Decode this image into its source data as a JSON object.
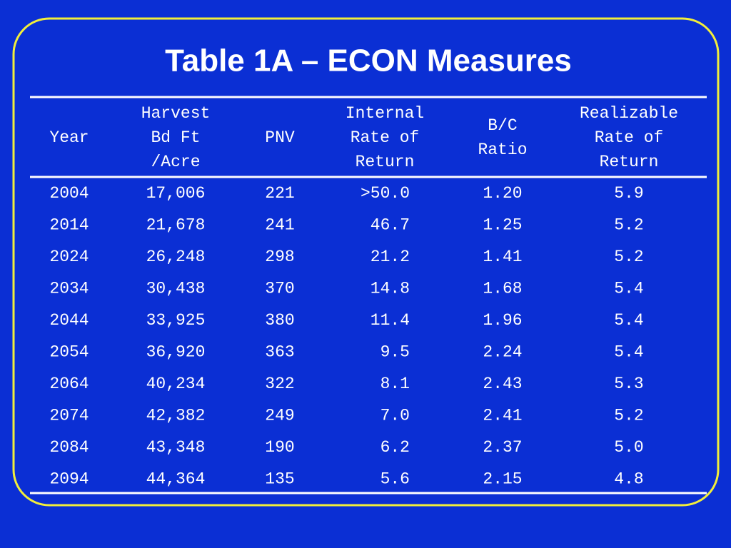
{
  "title": "Table 1A – ECON Measures",
  "table": {
    "header": [
      [
        "Year"
      ],
      [
        "Harvest",
        "Bd Ft",
        "/Acre"
      ],
      [
        "PNV"
      ],
      [
        "Internal",
        "Rate of",
        "Return"
      ],
      [
        "B/C",
        "Ratio"
      ],
      [
        "Realizable",
        "Rate of",
        "Return"
      ]
    ],
    "rows": [
      [
        "2004",
        "17,006",
        "221",
        ">50.0",
        "1.20",
        "5.9"
      ],
      [
        "2014",
        "21,678",
        "241",
        "46.7",
        "1.25",
        "5.2"
      ],
      [
        "2024",
        "26,248",
        "298",
        "21.2",
        "1.41",
        "5.2"
      ],
      [
        "2034",
        "30,438",
        "370",
        "14.8",
        "1.68",
        "5.4"
      ],
      [
        "2044",
        "33,925",
        "380",
        "11.4",
        "1.96",
        "5.4"
      ],
      [
        "2054",
        "36,920",
        "363",
        "9.5",
        "2.24",
        "5.4"
      ],
      [
        "2064",
        "40,234",
        "322",
        "8.1",
        "2.43",
        "5.3"
      ],
      [
        "2074",
        "42,382",
        "249",
        "7.0",
        "2.41",
        "5.2"
      ],
      [
        "2084",
        "43,348",
        "190",
        "6.2",
        "2.37",
        "5.0"
      ],
      [
        "2094",
        "44,364",
        "135",
        "5.6",
        "2.15",
        "4.8"
      ]
    ]
  }
}
